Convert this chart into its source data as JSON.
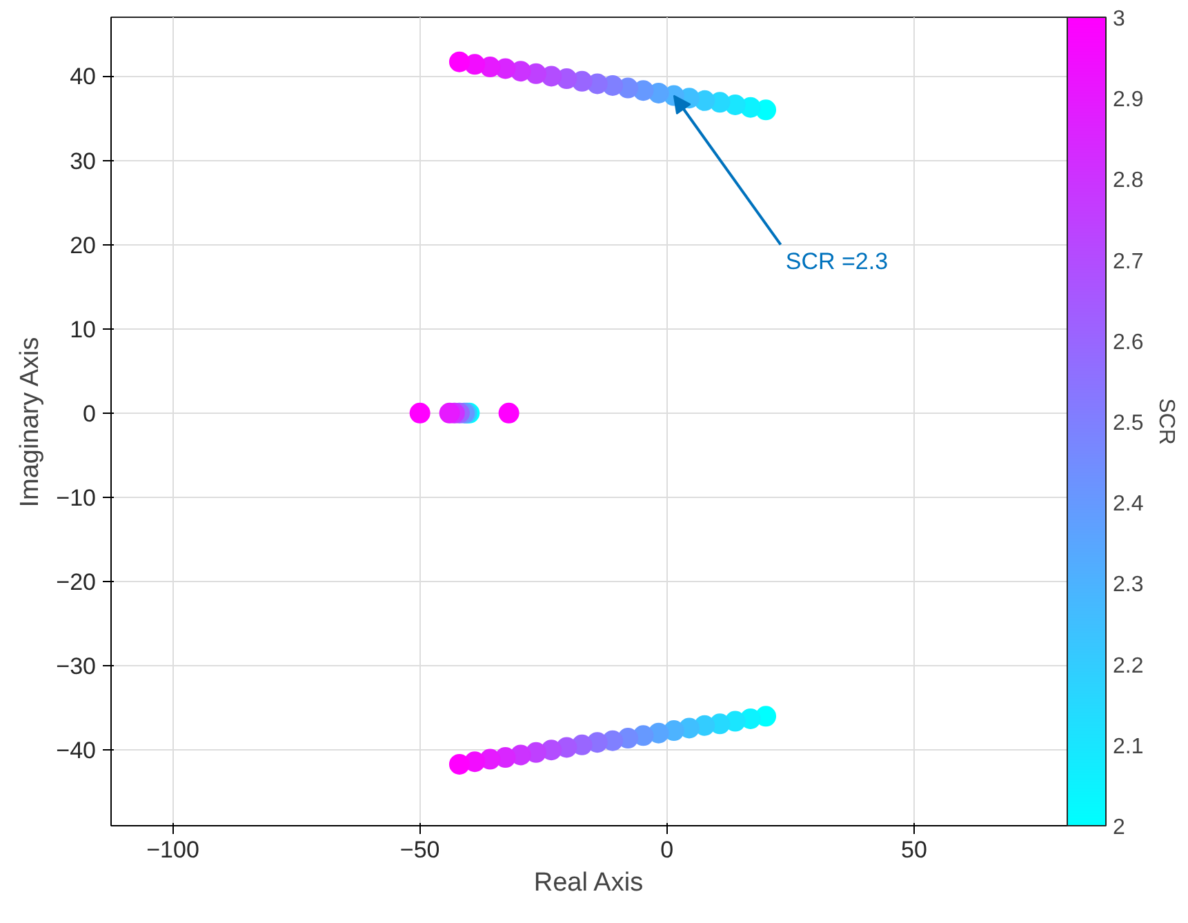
{
  "chart_data": {
    "type": "scatter",
    "xlabel": "Real Axis",
    "ylabel": "Imaginary Axis",
    "clabel": "SCR",
    "xlim": [
      -112.5,
      81
    ],
    "ylim": [
      -49,
      47
    ],
    "xticks": [
      -100,
      -50,
      0,
      50
    ],
    "yticks": [
      -40,
      -30,
      -20,
      -10,
      0,
      10,
      20,
      30,
      40
    ],
    "clim": [
      2,
      3
    ],
    "cticks": [
      2,
      2.1,
      2.2,
      2.3,
      2.4,
      2.5,
      2.6,
      2.7,
      2.8,
      2.9,
      3
    ],
    "grid": true,
    "marker": "circle",
    "annotations": [
      {
        "text": "SCR =2.3",
        "x": 1.4,
        "y": 37.7
      }
    ],
    "series": [
      {
        "colors": [
          "#00ffff",
          "#0df2ff",
          "#1ae6ff",
          "#26d9ff",
          "#33ccff",
          "#40bfff",
          "#4db3ff",
          "#59a6ff",
          "#6699ff",
          "#738cff",
          "#8080ff",
          "#8c73ff",
          "#9966ff",
          "#a659ff",
          "#b34dff",
          "#bf40ff",
          "#cc33ff",
          "#d926ff",
          "#e61aff",
          "#f20dff",
          "#ff00ff"
        ],
        "x": [
          20,
          16.9,
          13.8,
          10.7,
          7.6,
          4.5,
          1.4,
          -1.7,
          -4.8,
          -7.9,
          -11,
          -14.1,
          -17.2,
          -20.3,
          -23.4,
          -26.5,
          -29.6,
          -32.7,
          -35.8,
          -38.9,
          -42
        ],
        "values": [
          36,
          36.3,
          36.6,
          36.9,
          37.1,
          37.4,
          37.7,
          38,
          38.3,
          38.6,
          38.9,
          39.1,
          39.4,
          39.7,
          40,
          40.3,
          40.6,
          40.9,
          41.1,
          41.4,
          41.7
        ],
        "cvalues": [
          2,
          2.05,
          2.1,
          2.15,
          2.2,
          2.25,
          2.3,
          2.35,
          2.4,
          2.45,
          2.5,
          2.55,
          2.6,
          2.65,
          2.7,
          2.75,
          2.8,
          2.85,
          2.9,
          2.95,
          3
        ]
      },
      {
        "colors": [
          "#00ffff",
          "#0df2ff",
          "#1ae6ff",
          "#26d9ff",
          "#33ccff",
          "#40bfff",
          "#4db3ff",
          "#59a6ff",
          "#6699ff",
          "#738cff",
          "#8080ff",
          "#8c73ff",
          "#9966ff",
          "#a659ff",
          "#b34dff",
          "#bf40ff",
          "#cc33ff",
          "#d926ff",
          "#e61aff",
          "#f20dff",
          "#ff00ff"
        ],
        "x": [
          20,
          16.9,
          13.8,
          10.7,
          7.6,
          4.5,
          1.4,
          -1.7,
          -4.8,
          -7.9,
          -11,
          -14.1,
          -17.2,
          -20.3,
          -23.4,
          -26.5,
          -29.6,
          -32.7,
          -35.8,
          -38.9,
          -42
        ],
        "values": [
          -36,
          -36.3,
          -36.6,
          -36.9,
          -37.1,
          -37.4,
          -37.7,
          -38,
          -38.3,
          -38.6,
          -38.9,
          -39.1,
          -39.4,
          -39.7,
          -40,
          -40.3,
          -40.6,
          -40.9,
          -41.1,
          -41.4,
          -41.7
        ],
        "cvalues": [
          2,
          2.05,
          2.1,
          2.15,
          2.2,
          2.25,
          2.3,
          2.35,
          2.4,
          2.45,
          2.5,
          2.55,
          2.6,
          2.65,
          2.7,
          2.75,
          2.8,
          2.85,
          2.9,
          2.95,
          3
        ]
      },
      {
        "colors": [
          "#00ffff",
          "#33ccff",
          "#6699ff",
          "#9966ff",
          "#cc33ff",
          "#e61aff",
          "#ff00ff",
          "#ff00ff"
        ],
        "x": [
          -40,
          -40.5,
          -41,
          -42,
          -43,
          -44,
          -50,
          -32
        ],
        "values": [
          0,
          0,
          0,
          0,
          0,
          0,
          0,
          0
        ],
        "cvalues": [
          2,
          2.2,
          2.4,
          2.6,
          2.8,
          2.9,
          3,
          3
        ]
      }
    ]
  }
}
